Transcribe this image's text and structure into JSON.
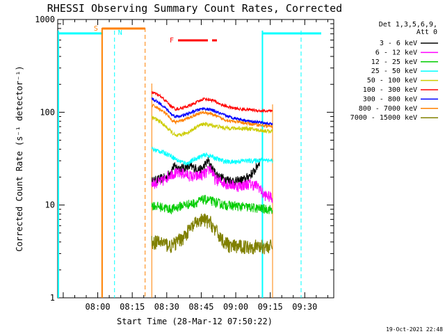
{
  "chart_data": {
    "type": "line",
    "title": "RHESSI Observing Summary Count Rates, Corrected",
    "xlabel": "Start Time (28-Mar-12 07:50:22)",
    "ylabel": "Corrected Count Rate (s⁻¹ detector⁻¹)",
    "yscale": "log",
    "ylim": [
      1,
      1000
    ],
    "xlim_minutes": [
      -17.4,
      102.6
    ],
    "x_ticks": [
      {
        "label": "08:00",
        "t": 0
      },
      {
        "label": "08:15",
        "t": 15
      },
      {
        "label": "08:30",
        "t": 30
      },
      {
        "label": "08:45",
        "t": 45
      },
      {
        "label": "09:00",
        "t": 60
      },
      {
        "label": "09:15",
        "t": 75
      },
      {
        "label": "09:30",
        "t": 90
      }
    ],
    "y_ticks": [
      {
        "label": "1",
        "v": 1
      },
      {
        "label": "10",
        "v": 10
      },
      {
        "label": "100",
        "v": 100
      },
      {
        "label": "1000",
        "v": 1000
      }
    ],
    "legend_header": [
      "Det 1,3,5,6,9,",
      "Att 0"
    ],
    "series": [
      {
        "name": "3 - 6 keV",
        "color": "#000000",
        "start": 23.5,
        "end": 70.5,
        "points": [
          [
            23.5,
            18
          ],
          [
            30,
            20
          ],
          [
            33,
            26
          ],
          [
            36,
            25
          ],
          [
            40,
            26
          ],
          [
            45,
            24
          ],
          [
            48,
            30
          ],
          [
            50,
            24
          ],
          [
            53,
            20
          ],
          [
            56,
            19
          ],
          [
            60,
            18
          ],
          [
            64,
            19
          ],
          [
            68,
            23
          ],
          [
            70.5,
            30
          ]
        ]
      },
      {
        "name": "6 - 12 keV",
        "color": "#ff00ff",
        "start": 23.5,
        "end": 76,
        "points": [
          [
            23.5,
            17
          ],
          [
            28,
            18
          ],
          [
            32,
            22
          ],
          [
            37,
            22
          ],
          [
            42,
            20
          ],
          [
            47,
            22
          ],
          [
            49,
            25
          ],
          [
            51,
            19
          ],
          [
            56,
            17
          ],
          [
            61,
            16
          ],
          [
            66,
            17
          ],
          [
            70,
            16
          ],
          [
            72,
            13
          ],
          [
            76,
            12
          ]
        ]
      },
      {
        "name": "12 - 25 keV",
        "color": "#00cc00",
        "start": 23.5,
        "end": 76,
        "points": [
          [
            23.5,
            10
          ],
          [
            28,
            9.5
          ],
          [
            32,
            9
          ],
          [
            37,
            10
          ],
          [
            42,
            10.5
          ],
          [
            46,
            11.5
          ],
          [
            50,
            11
          ],
          [
            55,
            10
          ],
          [
            60,
            9.8
          ],
          [
            65,
            9.5
          ],
          [
            70,
            9.2
          ],
          [
            76,
            9
          ]
        ]
      },
      {
        "name": "25 - 50 keV",
        "color": "#00ffff",
        "start": 23.5,
        "end": 76,
        "points": [
          [
            23.5,
            40
          ],
          [
            27,
            38
          ],
          [
            31,
            35
          ],
          [
            35,
            30
          ],
          [
            39,
            28
          ],
          [
            43,
            32
          ],
          [
            47,
            35
          ],
          [
            50,
            33
          ],
          [
            54,
            30
          ],
          [
            58,
            29
          ],
          [
            63,
            30
          ],
          [
            68,
            30
          ],
          [
            72,
            31
          ],
          [
            76,
            30
          ]
        ]
      },
      {
        "name": "50 - 100 keV",
        "color": "#cccc00",
        "start": 23.5,
        "end": 76,
        "points": [
          [
            23.5,
            88
          ],
          [
            27,
            80
          ],
          [
            31,
            65
          ],
          [
            34,
            55
          ],
          [
            37,
            58
          ],
          [
            40,
            62
          ],
          [
            43,
            70
          ],
          [
            46,
            75
          ],
          [
            50,
            72
          ],
          [
            55,
            68
          ],
          [
            60,
            67
          ],
          [
            65,
            67
          ],
          [
            70,
            64
          ],
          [
            76,
            62
          ]
        ]
      },
      {
        "name": "100 - 300 keV",
        "color": "#ff0000",
        "start": 23.5,
        "end": 76,
        "points": [
          [
            23.5,
            165
          ],
          [
            27,
            150
          ],
          [
            30,
            130
          ],
          [
            32,
            115
          ],
          [
            34,
            108
          ],
          [
            37,
            112
          ],
          [
            40,
            118
          ],
          [
            43,
            128
          ],
          [
            46,
            140
          ],
          [
            50,
            135
          ],
          [
            54,
            120
          ],
          [
            58,
            112
          ],
          [
            62,
            108
          ],
          [
            66,
            107
          ],
          [
            70,
            104
          ],
          [
            76,
            102
          ]
        ]
      },
      {
        "name": "300 - 800 keV",
        "color": "#0000ff",
        "start": 23.5,
        "end": 76,
        "points": [
          [
            23.5,
            140
          ],
          [
            27,
            125
          ],
          [
            30,
            108
          ],
          [
            32,
            95
          ],
          [
            34,
            90
          ],
          [
            37,
            92
          ],
          [
            40,
            98
          ],
          [
            43,
            105
          ],
          [
            46,
            110
          ],
          [
            50,
            105
          ],
          [
            54,
            95
          ],
          [
            58,
            88
          ],
          [
            62,
            84
          ],
          [
            66,
            80
          ],
          [
            70,
            78
          ],
          [
            76,
            74
          ]
        ]
      },
      {
        "name": "800 - 7000 keV",
        "color": "#ff8000",
        "start": 23.5,
        "end": 76,
        "points": [
          [
            23.5,
            120
          ],
          [
            27,
            108
          ],
          [
            30,
            95
          ],
          [
            32,
            82
          ],
          [
            34,
            78
          ],
          [
            37,
            82
          ],
          [
            40,
            88
          ],
          [
            43,
            95
          ],
          [
            46,
            100
          ],
          [
            50,
            95
          ],
          [
            54,
            85
          ],
          [
            58,
            80
          ],
          [
            62,
            78
          ],
          [
            66,
            75
          ],
          [
            70,
            73
          ],
          [
            76,
            70
          ]
        ]
      },
      {
        "name": "7000 - 15000 keV",
        "color": "#808000",
        "start": 23.5,
        "end": 76,
        "points": [
          [
            23.5,
            4
          ],
          [
            28,
            4
          ],
          [
            32,
            3.6
          ],
          [
            37,
            4.5
          ],
          [
            40,
            5.5
          ],
          [
            43,
            6.5
          ],
          [
            46,
            7
          ],
          [
            49,
            6.5
          ],
          [
            52,
            5
          ],
          [
            55,
            4
          ],
          [
            58,
            3.6
          ],
          [
            62,
            3.6
          ],
          [
            67,
            3.6
          ],
          [
            71,
            3.6
          ],
          [
            76,
            3.6
          ]
        ]
      }
    ],
    "annotations": [
      {
        "label": "S",
        "color": "#ff8000"
      },
      {
        "label": "N",
        "color": "#00ffff"
      },
      {
        "label": "F",
        "color": "#ff0000"
      }
    ],
    "footer_date": "19-Oct-2021 22:48"
  }
}
